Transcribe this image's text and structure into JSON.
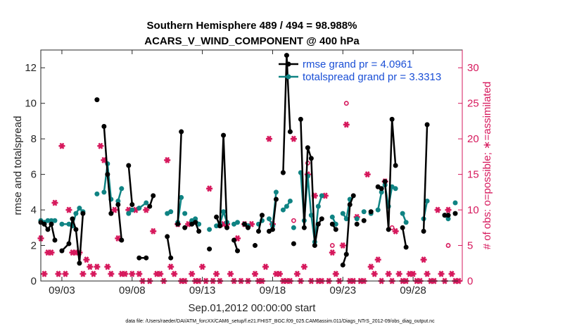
{
  "chart_data": {
    "type": "line",
    "title": "Southern Hemisphere 489 / 494 = 98.988%",
    "subtitle": "ACARS_V_WIND_COMPONENT @ 400 hPa",
    "xlabel": "Sep.01,2012 00:00:00 start",
    "ylabel": "rmse and totalspread",
    "y2label": "# of obs: o=possible; ∗=assimilated",
    "footer": "data file: /Users/raeder/DAI/ATM_forcXX/CAM6_setup/f.e21.FHIST_BGC.f09_025.CAM6assim.011/Diags_NTrS_2012-09/obs_diag_output.nc",
    "xlim": [
      1.5,
      31.5
    ],
    "ylim": [
      0,
      13
    ],
    "y2lim": [
      0,
      32.5
    ],
    "x_ticks": [
      3,
      8,
      13,
      18,
      23,
      28
    ],
    "x_tick_labels": [
      "09/03",
      "09/08",
      "09/13",
      "09/18",
      "09/23",
      "09/28"
    ],
    "y_ticks": [
      0,
      2,
      4,
      6,
      8,
      10,
      12
    ],
    "y_tick_labels": [
      "0",
      "2",
      "4",
      "6",
      "8",
      "10",
      "12"
    ],
    "y2_ticks": [
      0,
      5,
      10,
      15,
      20,
      25,
      30
    ],
    "y2_tick_labels": [
      "0",
      "5",
      "10",
      "15",
      "20",
      "25",
      "30"
    ],
    "colors": {
      "rmse": "#000000",
      "spread": "#0f8383",
      "obs": "#d6185c",
      "axis": "#262626"
    },
    "series": [
      {
        "name": "rmse",
        "legend_label": "rmse grand pr = 4.0961",
        "color": "#000000",
        "segments": [
          [
            [
              1.5,
              3.3
            ],
            [
              1.75,
              3.2
            ],
            [
              2.0,
              2.9
            ],
            [
              2.25,
              3.2
            ],
            [
              2.5,
              2.3
            ]
          ],
          [
            [
              3.0,
              1.7
            ],
            [
              3.5,
              2.1
            ],
            [
              3.75,
              3.5
            ],
            [
              4.0,
              2.9
            ],
            [
              4.25,
              1.0
            ],
            [
              4.5,
              3.8
            ]
          ],
          [
            [
              5.5,
              10.2
            ]
          ],
          [
            [
              6.0,
              8.7
            ],
            [
              6.25,
              6.0
            ],
            [
              6.5,
              3.8
            ]
          ],
          [
            [
              7.0,
              4.3
            ],
            [
              7.25,
              2.3
            ]
          ],
          [
            [
              7.75,
              6.5
            ],
            [
              8.0,
              4.3
            ]
          ],
          [
            [
              8.5,
              1.3
            ],
            [
              9.0,
              1.3
            ]
          ],
          [
            [
              9.25,
              4.2
            ],
            [
              9.5,
              4.8
            ]
          ],
          [
            [
              10.5,
              2.5
            ],
            [
              10.75,
              1.3
            ]
          ],
          [
            [
              11.25,
              3.2
            ],
            [
              11.5,
              8.4
            ]
          ],
          [
            [
              11.75,
              3.0
            ]
          ],
          [
            [
              12.25,
              3.2
            ],
            [
              12.5,
              3.3
            ],
            [
              12.75,
              2.8
            ]
          ],
          [
            [
              13.5,
              1.8
            ]
          ],
          [
            [
              14.0,
              3.6
            ],
            [
              14.25,
              3.1
            ],
            [
              14.5,
              8.2
            ],
            [
              14.75,
              3.0
            ]
          ],
          [
            [
              15.25,
              2.3
            ],
            [
              15.5,
              1.7
            ]
          ],
          [
            [
              16.0,
              3.2
            ],
            [
              16.25,
              3.0
            ]
          ],
          [
            [
              16.75,
              2.0
            ]
          ],
          [
            [
              17.0,
              2.8
            ],
            [
              17.25,
              3.7
            ]
          ],
          [
            [
              17.75,
              2.8
            ],
            [
              18.0,
              2.9
            ],
            [
              18.25,
              4.6
            ]
          ],
          [
            [
              18.75,
              6.1
            ],
            [
              19.0,
              12.7
            ],
            [
              19.25,
              8.4
            ]
          ],
          [
            [
              19.5,
              2.1
            ]
          ],
          [
            [
              20.0,
              9.1
            ],
            [
              20.25,
              3.0
            ],
            [
              20.5,
              7.5
            ],
            [
              20.75,
              6.9
            ],
            [
              21.0,
              2.0
            ],
            [
              21.25,
              3.2
            ],
            [
              21.5,
              3.5
            ]
          ],
          [
            [
              22.25,
              3.2
            ],
            [
              22.5,
              2.9
            ]
          ],
          [
            [
              23.0,
              0.9
            ],
            [
              23.25,
              1.5
            ],
            [
              23.5,
              4.3
            ],
            [
              23.75,
              4.8
            ]
          ],
          [
            [
              24.0,
              3.2
            ]
          ],
          [
            [
              24.5,
              3.4
            ]
          ],
          [
            [
              25.0,
              3.9
            ]
          ],
          [
            [
              25.5,
              5.3
            ],
            [
              25.75,
              5.2
            ]
          ],
          [
            [
              26.0,
              5.6
            ],
            [
              26.25,
              2.9
            ],
            [
              26.5,
              9.1
            ],
            [
              26.75,
              6.5
            ]
          ],
          [
            [
              27.25,
              3.0
            ],
            [
              27.5,
              1.9
            ]
          ],
          [
            [
              28.75,
              2.8
            ],
            [
              29.0,
              8.8
            ]
          ],
          [
            [
              30.25,
              3.7
            ],
            [
              30.5,
              3.7
            ]
          ],
          [
            [
              31.0,
              3.8
            ]
          ]
        ]
      },
      {
        "name": "totalspread",
        "legend_label": "totalspread grand pr = 3.3313",
        "color": "#0f8383",
        "segments": [
          [
            [
              1.5,
              3.4
            ],
            [
              1.75,
              3.3
            ],
            [
              2.0,
              3.4
            ],
            [
              2.25,
              3.4
            ],
            [
              2.5,
              3.4
            ]
          ],
          [
            [
              3.0,
              3.2
            ],
            [
              3.5,
              3.2
            ],
            [
              3.75,
              3.1
            ],
            [
              4.0,
              3.8
            ],
            [
              4.25,
              4.1
            ],
            [
              4.5,
              3.9
            ]
          ],
          [
            [
              5.5,
              4.9
            ]
          ],
          [
            [
              6.0,
              5.0
            ],
            [
              6.25,
              6.6
            ],
            [
              6.5,
              4.6
            ]
          ],
          [
            [
              7.0,
              4.5
            ],
            [
              7.25,
              5.2
            ]
          ],
          [
            [
              7.75,
              3.8
            ],
            [
              8.0,
              4.0
            ]
          ],
          [
            [
              8.5,
              4.1
            ],
            [
              9.0,
              4.4
            ]
          ],
          [
            [
              10.5,
              3.8
            ],
            [
              10.75,
              3.9
            ]
          ],
          [
            [
              11.25,
              3.3
            ],
            [
              11.5,
              4.7
            ]
          ],
          [
            [
              11.75,
              3.8
            ]
          ],
          [
            [
              12.25,
              3.4
            ],
            [
              12.5,
              3.5
            ],
            [
              12.75,
              3.2
            ]
          ],
          [
            [
              13.5,
              2.9
            ]
          ],
          [
            [
              14.0,
              3.1
            ],
            [
              14.25,
              3.2
            ],
            [
              14.5,
              3.9
            ],
            [
              14.75,
              3.3
            ]
          ],
          [
            [
              15.25,
              3.2
            ],
            [
              15.5,
              3.3
            ]
          ],
          [
            [
              16.0,
              3.2
            ],
            [
              16.25,
              3.1
            ]
          ],
          [
            [
              17.0,
              3.2
            ],
            [
              17.25,
              3.4
            ]
          ],
          [
            [
              17.75,
              3.5
            ],
            [
              18.0,
              3.1
            ],
            [
              18.25,
              5.0
            ]
          ],
          [
            [
              18.75,
              4.0
            ],
            [
              19.0,
              4.2
            ],
            [
              19.25,
              4.5
            ]
          ],
          [
            [
              19.5,
              3.0
            ]
          ],
          [
            [
              20.0,
              6.1
            ],
            [
              20.25,
              3.4
            ],
            [
              20.5,
              5.9
            ],
            [
              20.75,
              3.7
            ],
            [
              21.0,
              2.2
            ],
            [
              21.25,
              4.2
            ],
            [
              21.5,
              4.8
            ]
          ],
          [
            [
              22.25,
              3.6
            ],
            [
              22.5,
              3.2
            ]
          ],
          [
            [
              23.0,
              3.8
            ],
            [
              23.25,
              3.5
            ],
            [
              23.5,
              4.6
            ]
          ],
          [
            [
              24.0,
              3.5
            ]
          ],
          [
            [
              24.5,
              3.9
            ]
          ],
          [
            [
              25.0,
              3.8
            ]
          ],
          [
            [
              25.5,
              4.0
            ],
            [
              25.75,
              5.0
            ]
          ],
          [
            [
              26.0,
              5.4
            ],
            [
              26.25,
              4.2
            ],
            [
              26.5,
              5.3
            ],
            [
              26.75,
              5.2
            ]
          ],
          [
            [
              27.25,
              3.8
            ],
            [
              27.5,
              3.3
            ]
          ],
          [
            [
              28.75,
              3.5
            ],
            [
              29.0,
              4.5
            ]
          ],
          [
            [
              30.25,
              3.7
            ],
            [
              30.5,
              3.5
            ]
          ],
          [
            [
              31.0,
              4.4
            ]
          ]
        ]
      }
    ],
    "obs_possible": [
      [
        19.5,
        8.5
      ],
      [
        20.5,
        16.6
      ],
      [
        22.25,
        5
      ],
      [
        23.25,
        25
      ],
      [
        26.5,
        7.5
      ],
      [
        21.25,
        10.5
      ],
      [
        30.5,
        5
      ]
    ],
    "obs_assimilated": [
      [
        1.5,
        6
      ],
      [
        1.75,
        1
      ],
      [
        2.0,
        4
      ],
      [
        2.25,
        4
      ],
      [
        2.5,
        11
      ],
      [
        2.75,
        1
      ],
      [
        3.0,
        19
      ],
      [
        3.25,
        1
      ],
      [
        3.5,
        10
      ],
      [
        3.75,
        4
      ],
      [
        4.0,
        4
      ],
      [
        4.25,
        4
      ],
      [
        4.5,
        1
      ],
      [
        4.75,
        3
      ],
      [
        5.0,
        2
      ],
      [
        5.25,
        1
      ],
      [
        5.5,
        2
      ],
      [
        5.75,
        19
      ],
      [
        6.0,
        17
      ],
      [
        6.25,
        2
      ],
      [
        6.5,
        1
      ],
      [
        6.75,
        10
      ],
      [
        7.0,
        6
      ],
      [
        7.25,
        1
      ],
      [
        7.5,
        1
      ],
      [
        7.75,
        10
      ],
      [
        8.0,
        1
      ],
      [
        8.25,
        10
      ],
      [
        8.5,
        1
      ],
      [
        8.75,
        0
      ],
      [
        9.0,
        10
      ],
      [
        9.25,
        0
      ],
      [
        9.5,
        7
      ],
      [
        9.75,
        1
      ],
      [
        10.0,
        1
      ],
      [
        10.25,
        0
      ],
      [
        10.5,
        17
      ],
      [
        10.75,
        2
      ],
      [
        11.0,
        1
      ],
      [
        11.25,
        8
      ],
      [
        11.5,
        0
      ],
      [
        11.75,
        0
      ],
      [
        12.0,
        8
      ],
      [
        12.25,
        1
      ],
      [
        12.5,
        0
      ],
      [
        12.75,
        0
      ],
      [
        13.0,
        2
      ],
      [
        13.25,
        0
      ],
      [
        13.5,
        13
      ],
      [
        13.75,
        0
      ],
      [
        14.0,
        1
      ],
      [
        14.25,
        0
      ],
      [
        14.5,
        8
      ],
      [
        14.75,
        8
      ],
      [
        15.0,
        1
      ],
      [
        15.25,
        0
      ],
      [
        15.5,
        6
      ],
      [
        15.75,
        0
      ],
      [
        16.0,
        8
      ],
      [
        16.25,
        0
      ],
      [
        16.5,
        8
      ],
      [
        16.75,
        1
      ],
      [
        17.0,
        0
      ],
      [
        17.25,
        0
      ],
      [
        17.5,
        2
      ],
      [
        17.75,
        20
      ],
      [
        18.0,
        8
      ],
      [
        18.25,
        1
      ],
      [
        18.5,
        1
      ],
      [
        18.75,
        0
      ],
      [
        19.0,
        0
      ],
      [
        19.25,
        0
      ],
      [
        19.5,
        20
      ],
      [
        19.75,
        1
      ],
      [
        20.0,
        0
      ],
      [
        20.25,
        2
      ],
      [
        20.5,
        15
      ],
      [
        20.75,
        0
      ],
      [
        21.0,
        12
      ],
      [
        21.25,
        0
      ],
      [
        21.5,
        0
      ],
      [
        21.75,
        12
      ],
      [
        22.0,
        0
      ],
      [
        22.25,
        4
      ],
      [
        22.5,
        1
      ],
      [
        22.75,
        0
      ],
      [
        23.0,
        5
      ],
      [
        23.25,
        22
      ],
      [
        23.5,
        0
      ],
      [
        23.75,
        0
      ],
      [
        24.0,
        9
      ],
      [
        24.25,
        0
      ],
      [
        24.5,
        0
      ],
      [
        24.75,
        15
      ],
      [
        25.0,
        2
      ],
      [
        25.25,
        1
      ],
      [
        25.5,
        3
      ],
      [
        25.75,
        0
      ],
      [
        26.0,
        14
      ],
      [
        26.25,
        1
      ],
      [
        26.5,
        0
      ],
      [
        26.75,
        7
      ],
      [
        27.0,
        1
      ],
      [
        27.25,
        0
      ],
      [
        27.5,
        0
      ],
      [
        27.75,
        1
      ],
      [
        28.0,
        1
      ],
      [
        28.25,
        0
      ],
      [
        28.5,
        0
      ],
      [
        28.75,
        3
      ],
      [
        29.0,
        1
      ],
      [
        29.25,
        0
      ],
      [
        29.5,
        0
      ],
      [
        29.75,
        10
      ],
      [
        30.0,
        1
      ],
      [
        30.25,
        0
      ],
      [
        30.5,
        10
      ],
      [
        30.75,
        1
      ],
      [
        31.0,
        0
      ],
      [
        31.25,
        0
      ]
    ]
  }
}
